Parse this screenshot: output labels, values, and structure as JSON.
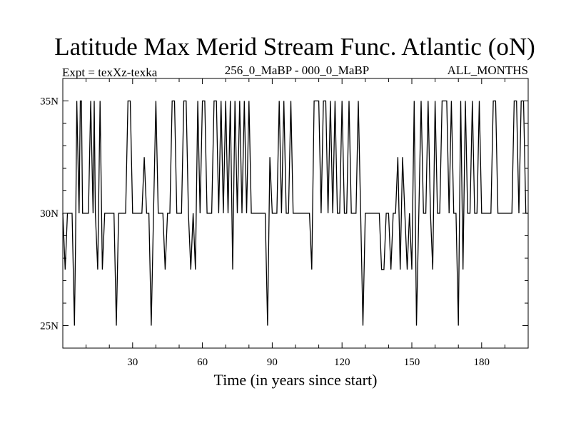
{
  "chart_data": {
    "type": "line",
    "title": "Latitude Max Merid Stream Func. Atlantic (oN)",
    "subtitle_left": "Expt = texXz-texka",
    "subtitle_center": "256_0_MaBP - 000_0_MaBP",
    "subtitle_right": "ALL_MONTHS",
    "xlabel": "Time (in years since start)",
    "ylabel": "",
    "xlim": [
      0,
      200
    ],
    "ylim": [
      24,
      36
    ],
    "x_ticks": [
      30,
      60,
      90,
      120,
      150,
      180
    ],
    "y_ticks": [
      {
        "value": 25,
        "label": "25N"
      },
      {
        "value": 30,
        "label": "30N"
      },
      {
        "value": 35,
        "label": "35N"
      }
    ],
    "grid": false,
    "series": [
      {
        "color": "#000000",
        "points": [
          [
            0,
            30
          ],
          [
            0.5,
            28.8
          ],
          [
            1,
            27.5
          ],
          [
            2,
            30
          ],
          [
            3,
            30
          ],
          [
            4,
            30
          ],
          [
            5,
            25
          ],
          [
            5.5,
            28.8
          ],
          [
            6,
            35
          ],
          [
            7,
            30
          ],
          [
            7.5,
            35
          ],
          [
            8,
            35
          ],
          [
            8.5,
            30
          ],
          [
            9,
            30
          ],
          [
            10,
            30
          ],
          [
            11,
            30
          ],
          [
            12,
            35
          ],
          [
            13,
            30
          ],
          [
            13.5,
            35
          ],
          [
            14,
            30
          ],
          [
            15,
            27.5
          ],
          [
            16,
            35
          ],
          [
            17,
            27.5
          ],
          [
            18,
            30
          ],
          [
            19,
            30
          ],
          [
            20,
            30
          ],
          [
            21,
            30
          ],
          [
            22,
            30
          ],
          [
            23,
            25
          ],
          [
            24,
            30
          ],
          [
            25,
            30
          ],
          [
            26,
            30
          ],
          [
            27,
            30
          ],
          [
            28,
            35
          ],
          [
            29,
            35
          ],
          [
            30,
            30
          ],
          [
            31,
            30
          ],
          [
            32,
            30
          ],
          [
            33,
            30
          ],
          [
            34,
            30
          ],
          [
            35,
            32.5
          ],
          [
            36,
            30
          ],
          [
            37,
            30
          ],
          [
            38,
            25
          ],
          [
            39,
            30
          ],
          [
            40,
            35
          ],
          [
            41,
            30
          ],
          [
            42,
            30
          ],
          [
            43,
            30
          ],
          [
            44,
            27.5
          ],
          [
            45,
            30
          ],
          [
            46,
            30
          ],
          [
            47,
            35
          ],
          [
            48,
            35
          ],
          [
            49,
            30
          ],
          [
            50,
            30
          ],
          [
            51,
            30
          ],
          [
            52,
            35
          ],
          [
            53,
            35
          ],
          [
            54,
            30
          ],
          [
            55,
            27.5
          ],
          [
            56,
            30
          ],
          [
            57,
            27.5
          ],
          [
            58,
            35
          ],
          [
            59,
            30
          ],
          [
            60,
            35
          ],
          [
            61,
            35
          ],
          [
            62,
            30
          ],
          [
            63,
            30
          ],
          [
            64,
            30
          ],
          [
            65,
            35
          ],
          [
            66,
            35
          ],
          [
            67,
            30
          ],
          [
            68,
            35
          ],
          [
            69,
            30
          ],
          [
            70,
            35
          ],
          [
            71,
            30
          ],
          [
            72,
            35
          ],
          [
            73,
            27.5
          ],
          [
            74,
            35
          ],
          [
            75,
            30
          ],
          [
            76,
            35
          ],
          [
            77,
            30
          ],
          [
            78,
            35
          ],
          [
            79,
            30
          ],
          [
            80,
            35
          ],
          [
            81,
            30
          ],
          [
            82,
            30
          ],
          [
            83,
            30
          ],
          [
            84,
            30
          ],
          [
            85,
            30
          ],
          [
            86,
            30
          ],
          [
            87,
            30
          ],
          [
            88,
            25
          ],
          [
            89,
            32.5
          ],
          [
            90,
            30
          ],
          [
            91,
            30
          ],
          [
            92,
            30
          ],
          [
            93,
            35
          ],
          [
            94,
            30
          ],
          [
            95,
            35
          ],
          [
            96,
            30
          ],
          [
            97,
            30
          ],
          [
            98,
            35
          ],
          [
            99,
            30
          ],
          [
            100,
            30
          ],
          [
            101,
            30
          ],
          [
            102,
            30
          ],
          [
            103,
            30
          ],
          [
            104,
            30
          ],
          [
            105,
            30
          ],
          [
            106,
            30
          ],
          [
            107,
            27.5
          ],
          [
            108,
            35
          ],
          [
            109,
            35
          ],
          [
            110,
            35
          ],
          [
            111,
            30
          ],
          [
            112,
            35
          ],
          [
            113,
            35
          ],
          [
            114,
            30
          ],
          [
            115,
            35
          ],
          [
            116,
            30
          ],
          [
            117,
            35
          ],
          [
            118,
            30
          ],
          [
            119,
            30
          ],
          [
            120,
            35
          ],
          [
            121,
            30
          ],
          [
            122,
            30
          ],
          [
            123,
            35
          ],
          [
            124,
            30
          ],
          [
            125,
            30
          ],
          [
            126,
            30
          ],
          [
            127,
            35
          ],
          [
            128,
            30
          ],
          [
            129,
            25
          ],
          [
            130,
            30
          ],
          [
            131,
            30
          ],
          [
            132,
            30
          ],
          [
            133,
            30
          ],
          [
            134,
            30
          ],
          [
            135,
            30
          ],
          [
            136,
            30
          ],
          [
            137,
            27.5
          ],
          [
            138,
            27.5
          ],
          [
            139,
            30
          ],
          [
            140,
            30
          ],
          [
            141,
            27.5
          ],
          [
            142,
            30
          ],
          [
            143,
            30
          ],
          [
            144,
            32.5
          ],
          [
            145,
            27.5
          ],
          [
            146,
            32.5
          ],
          [
            147,
            30
          ],
          [
            148,
            27.5
          ],
          [
            149,
            30
          ],
          [
            150,
            27.5
          ],
          [
            151,
            35
          ],
          [
            152,
            25
          ],
          [
            153,
            30
          ],
          [
            154,
            35
          ],
          [
            155,
            30
          ],
          [
            156,
            30
          ],
          [
            157,
            35
          ],
          [
            158,
            30
          ],
          [
            159,
            27.5
          ],
          [
            160,
            35
          ],
          [
            161,
            30
          ],
          [
            162,
            30
          ],
          [
            163,
            35
          ],
          [
            164,
            35
          ],
          [
            165,
            35
          ],
          [
            166,
            30
          ],
          [
            167,
            35
          ],
          [
            168,
            30
          ],
          [
            169,
            30
          ],
          [
            170,
            25
          ],
          [
            171,
            35
          ],
          [
            172,
            27.5
          ],
          [
            173,
            35
          ],
          [
            174,
            30
          ],
          [
            175,
            30
          ],
          [
            176,
            35
          ],
          [
            177,
            30
          ],
          [
            178,
            30
          ],
          [
            179,
            35
          ],
          [
            180,
            30
          ],
          [
            181,
            30
          ],
          [
            182,
            30
          ],
          [
            183,
            30
          ],
          [
            184,
            30
          ],
          [
            185,
            35
          ],
          [
            186,
            35
          ],
          [
            187,
            30
          ],
          [
            188,
            30
          ],
          [
            189,
            30
          ],
          [
            190,
            30
          ],
          [
            191,
            30
          ],
          [
            192,
            30
          ],
          [
            193,
            30
          ],
          [
            194,
            35
          ],
          [
            195,
            35
          ],
          [
            196,
            30
          ],
          [
            197,
            35
          ],
          [
            198,
            35
          ],
          [
            199,
            30
          ],
          [
            200,
            30
          ]
        ]
      }
    ]
  }
}
